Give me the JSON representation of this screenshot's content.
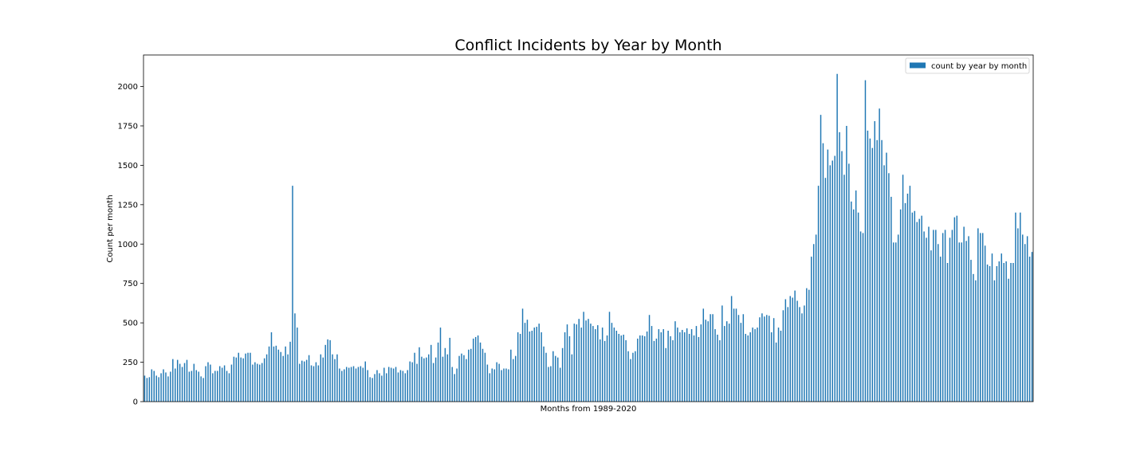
{
  "chart_data": {
    "type": "bar",
    "title": "Conflict Incidents by Year by Month",
    "xlabel": "Months from 1989-2020",
    "ylabel": "Count per month",
    "ylim": [
      0,
      2200
    ],
    "yticks": [
      0,
      250,
      500,
      750,
      1000,
      1250,
      1500,
      1750,
      2000
    ],
    "grid": false,
    "legend_position": "top-right",
    "series": [
      {
        "name": "count by year by month",
        "color": "#1f77b4",
        "values": [
          165,
          150,
          155,
          205,
          195,
          165,
          155,
          180,
          205,
          185,
          160,
          190,
          270,
          210,
          265,
          240,
          220,
          245,
          265,
          190,
          195,
          240,
          200,
          190,
          160,
          150,
          225,
          250,
          235,
          180,
          195,
          195,
          225,
          215,
          230,
          195,
          180,
          235,
          285,
          280,
          310,
          280,
          275,
          305,
          310,
          310,
          235,
          250,
          240,
          235,
          245,
          275,
          300,
          350,
          440,
          350,
          355,
          330,
          315,
          290,
          350,
          300,
          380,
          1370,
          560,
          470,
          240,
          260,
          255,
          265,
          295,
          230,
          225,
          250,
          230,
          300,
          280,
          360,
          395,
          390,
          300,
          270,
          300,
          210,
          195,
          205,
          220,
          215,
          220,
          225,
          210,
          220,
          225,
          215,
          255,
          200,
          155,
          150,
          175,
          200,
          180,
          165,
          215,
          180,
          220,
          215,
          210,
          220,
          185,
          200,
          195,
          180,
          200,
          255,
          250,
          310,
          240,
          345,
          285,
          275,
          280,
          300,
          360,
          245,
          280,
          375,
          470,
          285,
          340,
          300,
          405,
          220,
          175,
          210,
          290,
          305,
          295,
          270,
          330,
          335,
          400,
          410,
          420,
          375,
          335,
          310,
          235,
          180,
          210,
          205,
          250,
          240,
          200,
          210,
          210,
          205,
          330,
          270,
          290,
          440,
          430,
          590,
          500,
          520,
          445,
          450,
          470,
          475,
          495,
          440,
          350,
          310,
          220,
          225,
          320,
          290,
          280,
          215,
          340,
          440,
          490,
          415,
          300,
          495,
          490,
          525,
          470,
          570,
          515,
          525,
          495,
          480,
          460,
          485,
          395,
          470,
          385,
          420,
          570,
          500,
          470,
          450,
          430,
          420,
          425,
          390,
          320,
          270,
          310,
          320,
          400,
          420,
          420,
          415,
          445,
          550,
          480,
          385,
          400,
          460,
          440,
          460,
          340,
          450,
          415,
          390,
          510,
          470,
          440,
          455,
          440,
          465,
          430,
          460,
          420,
          480,
          410,
          490,
          590,
          520,
          510,
          555,
          555,
          460,
          425,
          390,
          610,
          480,
          510,
          495,
          670,
          590,
          590,
          550,
          500,
          555,
          430,
          420,
          440,
          470,
          460,
          470,
          535,
          560,
          540,
          550,
          545,
          440,
          530,
          375,
          470,
          450,
          580,
          650,
          600,
          670,
          660,
          705,
          640,
          600,
          560,
          610,
          720,
          710,
          920,
          1000,
          1060,
          1370,
          1820,
          1640,
          1420,
          1600,
          1500,
          1530,
          1560,
          2080,
          1710,
          1590,
          1440,
          1750,
          1510,
          1270,
          1220,
          1340,
          1200,
          1080,
          1070,
          2040,
          1720,
          1670,
          1610,
          1780,
          1660,
          1860,
          1660,
          1500,
          1580,
          1450,
          1300,
          1010,
          1010,
          1060,
          1220,
          1440,
          1260,
          1320,
          1370,
          1200,
          1210,
          1140,
          1160,
          1180,
          1080,
          1040,
          1110,
          960,
          1090,
          1090,
          1000,
          920,
          1070,
          1090,
          880,
          1040,
          1090,
          1170,
          1180,
          1010,
          1010,
          1110,
          1020,
          1050,
          900,
          810,
          770,
          1100,
          1070,
          1070,
          990,
          870,
          860,
          940,
          770,
          860,
          890,
          940,
          880,
          890,
          780,
          880,
          880,
          1200,
          1100,
          1200,
          1060,
          1000,
          1050,
          920,
          950
        ]
      }
    ]
  }
}
